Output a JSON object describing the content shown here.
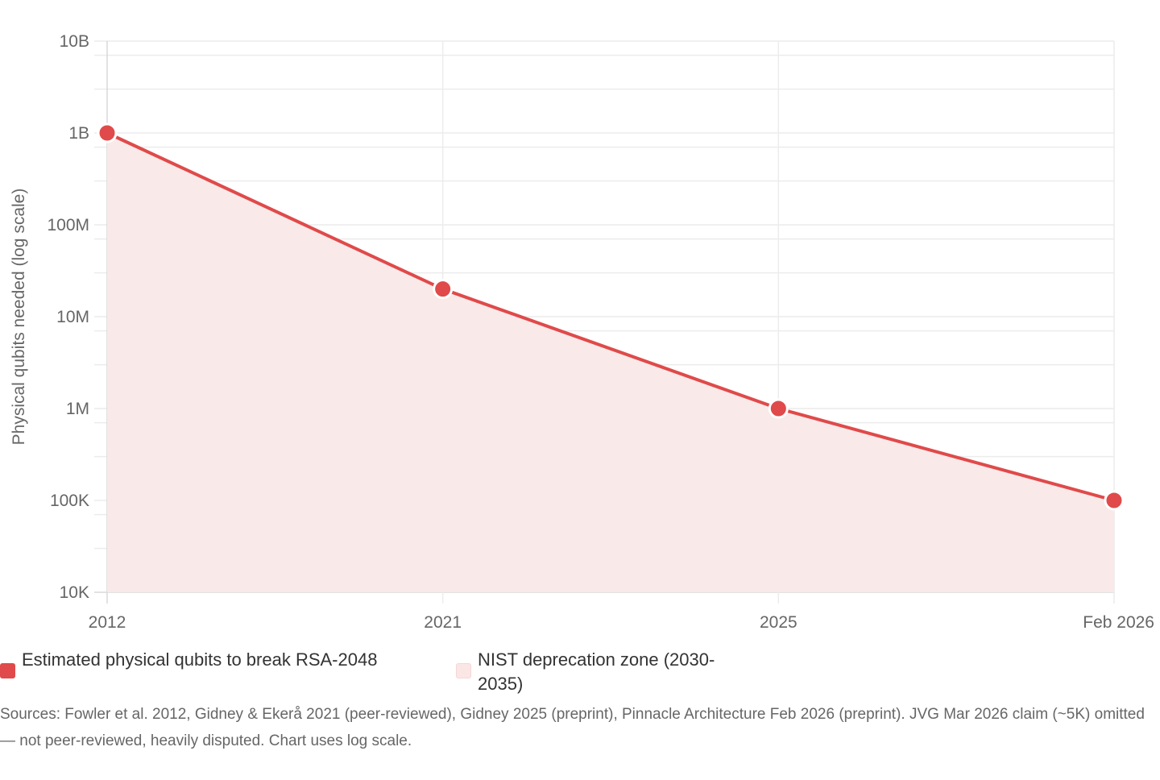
{
  "chart_data": {
    "type": "line",
    "categories": [
      "2012",
      "2021",
      "2025",
      "Feb 2026"
    ],
    "series": [
      {
        "name": "Estimated physical qubits to break RSA-2048",
        "values": [
          1000000000,
          20000000,
          1000000,
          100000
        ],
        "color": "#e04a4a",
        "fill": "#f9e9e9"
      }
    ],
    "ylabel": "Physical qubits needed (log scale)",
    "yscale": "log",
    "ylim": [
      10000,
      10000000000
    ],
    "yticks": [
      {
        "value": 10000000000,
        "label": "10B"
      },
      {
        "value": 1000000000,
        "label": "1B"
      },
      {
        "value": 100000000,
        "label": "100M"
      },
      {
        "value": 10000000,
        "label": "10M"
      },
      {
        "value": 1000000,
        "label": "1M"
      },
      {
        "value": 100000,
        "label": "100K"
      },
      {
        "value": 10000,
        "label": "10K"
      }
    ],
    "grid": true,
    "legend": {
      "placement": "bottom-left",
      "items": [
        {
          "label": "Estimated physical qubits to break RSA-2048",
          "color": "#e04a4a"
        },
        {
          "label": "NIST deprecation zone (2030-2035)",
          "color": "#fbe6e6"
        }
      ]
    },
    "note": "Sources: Fowler et al. 2012, Gidney & Ekerå 2021 (peer-reviewed), Gidney 2025 (preprint), Pinnacle Architecture Feb 2026 (preprint). JVG Mar 2026 claim (~5K) omitted — not peer-reviewed, heavily disputed. Chart uses log scale."
  }
}
